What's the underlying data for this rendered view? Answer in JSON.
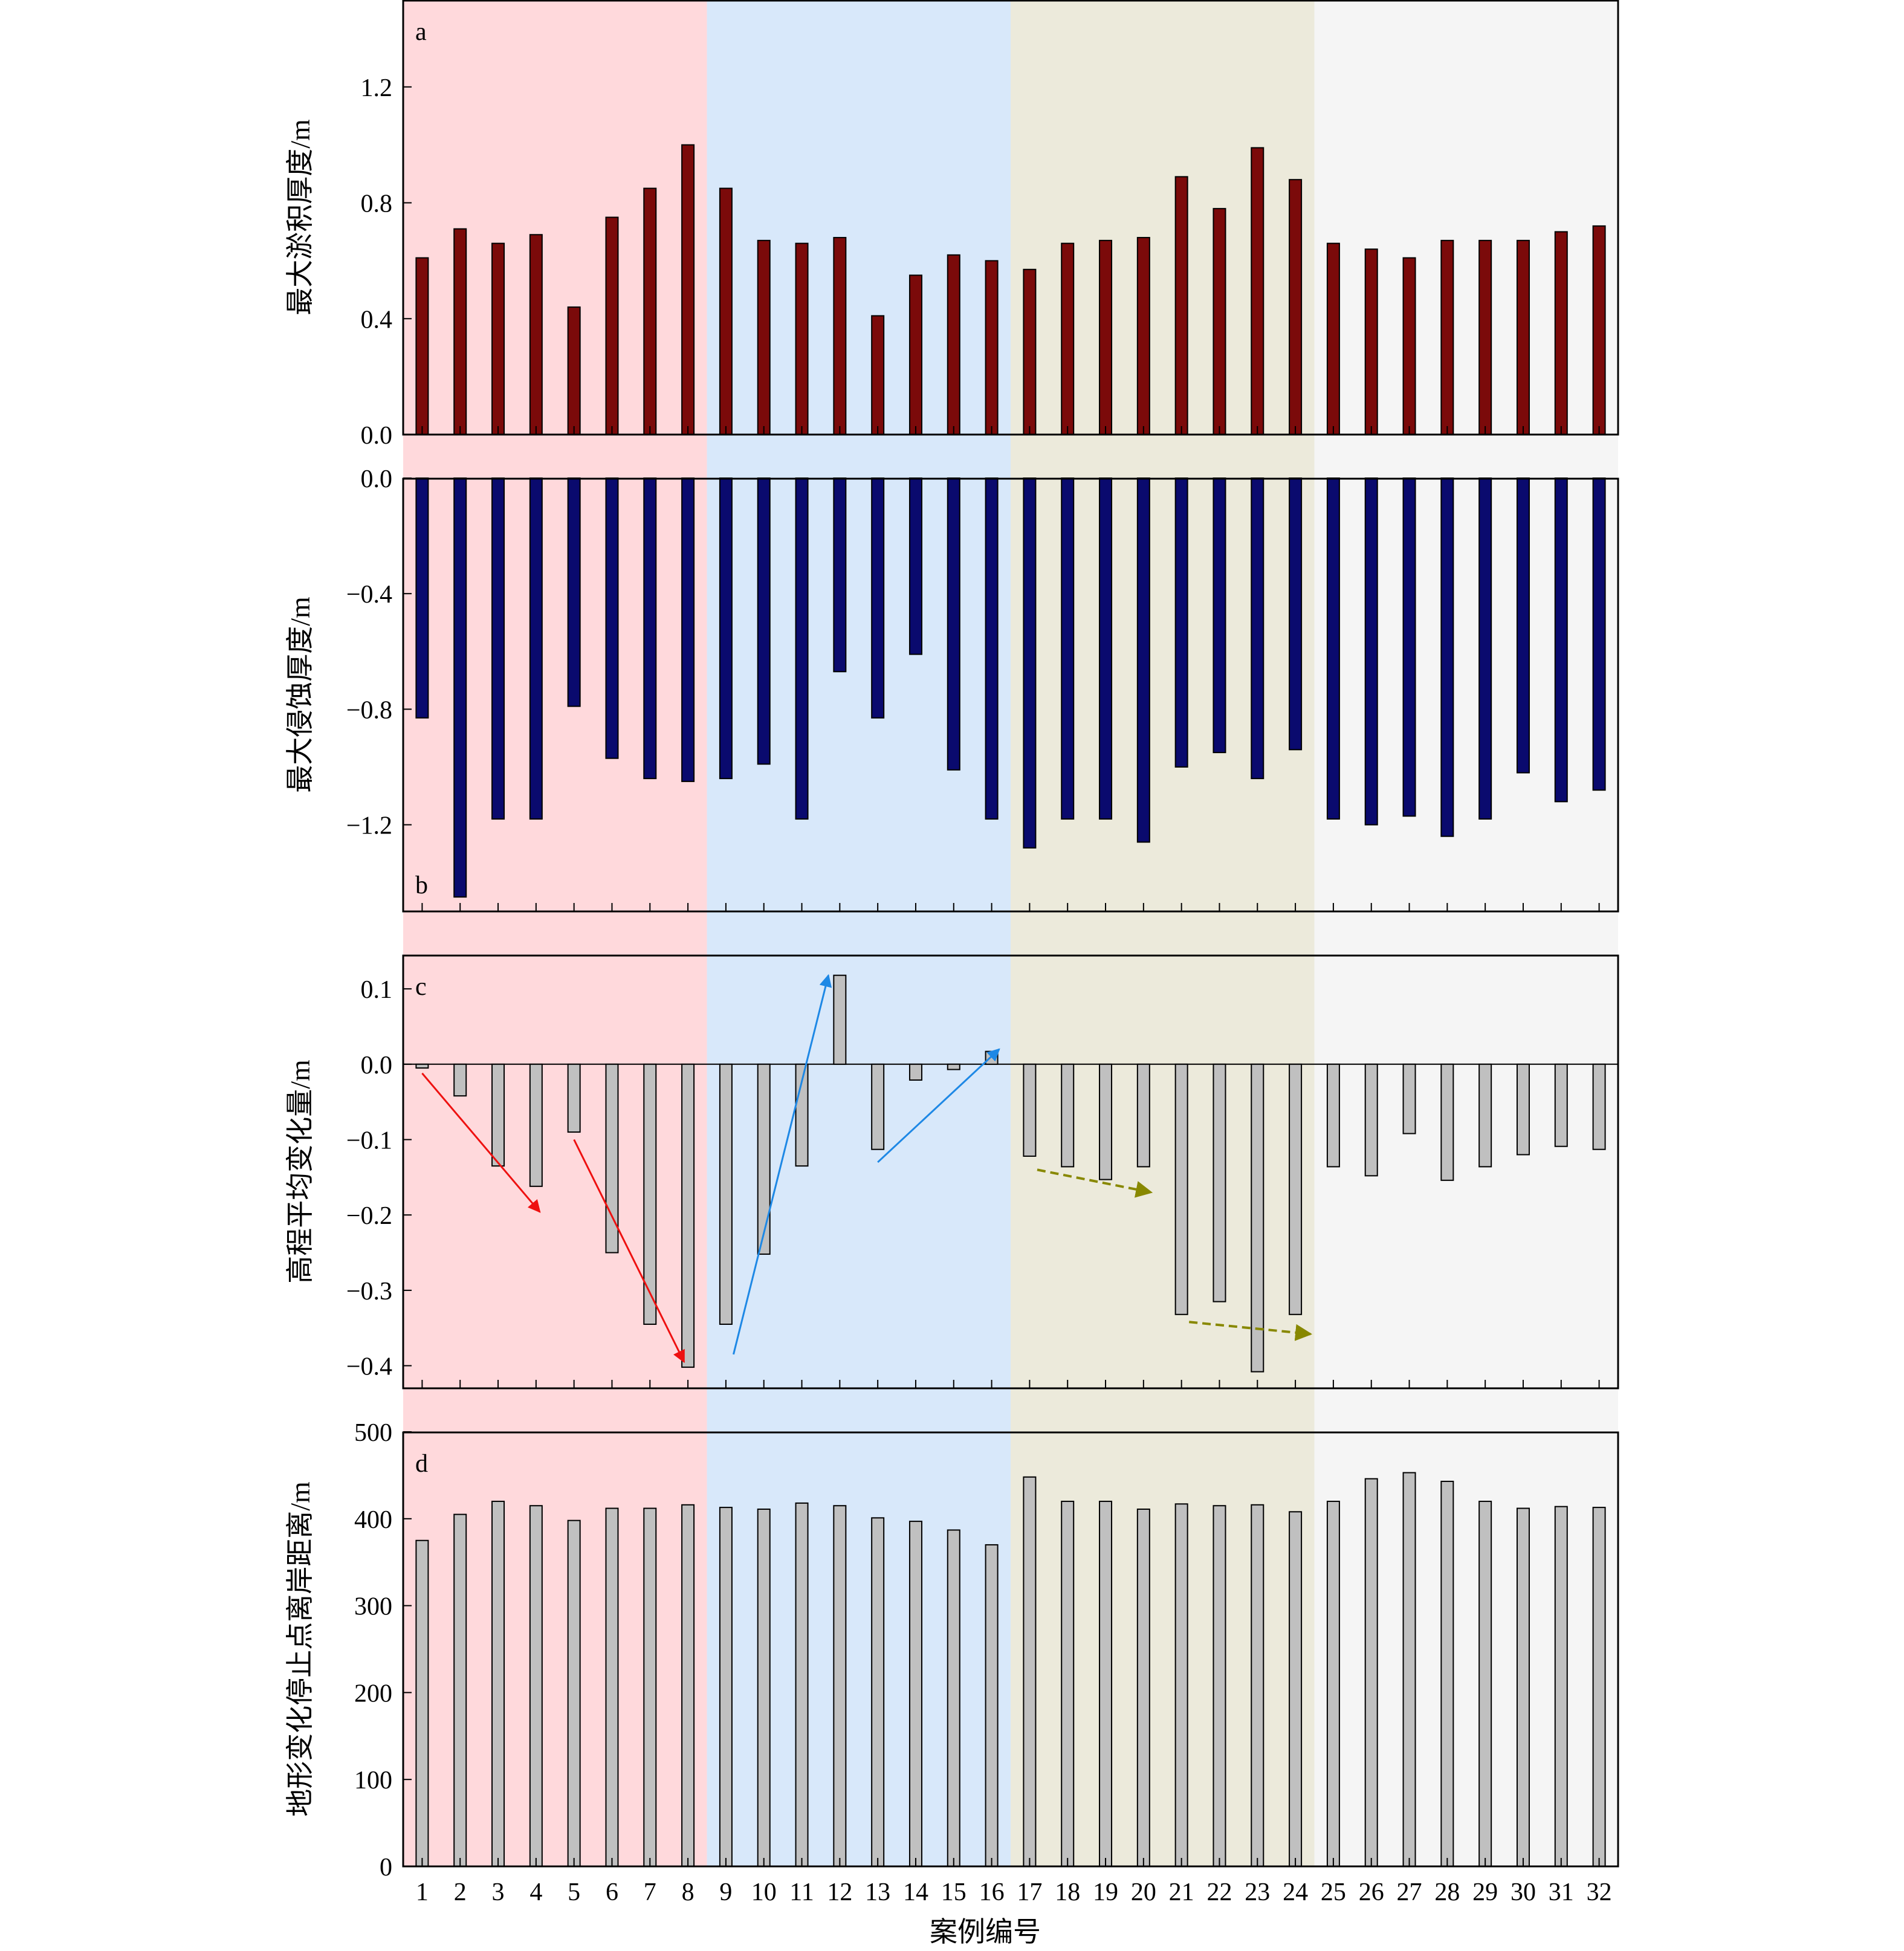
{
  "chart_data": [
    {
      "panel_label": "a",
      "type": "bar",
      "ylabel": "最大淤积厚度/m",
      "ylim": [
        0,
        1.5
      ],
      "yticks": [
        0.0,
        0.4,
        0.8,
        1.2
      ],
      "tick_labels": [
        "0.0",
        "0.4",
        "0.8",
        "1.2"
      ],
      "bar_color": "#7b0a0a",
      "categories": [
        1,
        2,
        3,
        4,
        5,
        6,
        7,
        8,
        9,
        10,
        11,
        12,
        13,
        14,
        15,
        16,
        17,
        18,
        19,
        20,
        21,
        22,
        23,
        24,
        25,
        26,
        27,
        28,
        29,
        30,
        31,
        32
      ],
      "values": [
        0.61,
        0.71,
        0.66,
        0.69,
        0.44,
        0.75,
        0.85,
        1.0,
        0.85,
        0.67,
        0.66,
        0.68,
        0.41,
        0.55,
        0.62,
        0.6,
        0.57,
        0.66,
        0.67,
        0.68,
        0.89,
        0.78,
        0.99,
        0.88,
        0.66,
        0.64,
        0.61,
        0.67,
        0.67,
        0.67,
        0.7,
        0.72
      ]
    },
    {
      "panel_label": "b",
      "type": "bar",
      "ylabel": "最大侵蚀厚度/m",
      "ylim": [
        -1.5,
        0
      ],
      "yticks": [
        0.0,
        -0.4,
        -0.8,
        -1.2
      ],
      "tick_labels": [
        "0.0",
        "−0.4",
        "−0.8",
        "−1.2"
      ],
      "bar_color": "#0a0a6e",
      "categories": [
        1,
        2,
        3,
        4,
        5,
        6,
        7,
        8,
        9,
        10,
        11,
        12,
        13,
        14,
        15,
        16,
        17,
        18,
        19,
        20,
        21,
        22,
        23,
        24,
        25,
        26,
        27,
        28,
        29,
        30,
        31,
        32
      ],
      "values": [
        -0.83,
        -1.45,
        -1.18,
        -1.18,
        -0.79,
        -0.97,
        -1.04,
        -1.05,
        -1.04,
        -0.99,
        -1.18,
        -0.67,
        -0.83,
        -0.61,
        -1.01,
        -1.18,
        -1.28,
        -1.18,
        -1.18,
        -1.26,
        -1.0,
        -0.95,
        -1.04,
        -0.94,
        -1.18,
        -1.2,
        -1.17,
        -1.24,
        -1.18,
        -1.02,
        -1.12,
        -1.08
      ]
    },
    {
      "panel_label": "c",
      "type": "bar",
      "ylabel": "高程平均变化量/m",
      "ylim": [
        -0.43,
        0.145
      ],
      "yticks": [
        0.1,
        0.0,
        -0.1,
        -0.2,
        -0.3,
        -0.4
      ],
      "tick_labels": [
        "0.1",
        "0.0",
        "−0.1",
        "−0.2",
        "−0.3",
        "−0.4"
      ],
      "bar_color": "#c0c0c0",
      "categories": [
        1,
        2,
        3,
        4,
        5,
        6,
        7,
        8,
        9,
        10,
        11,
        12,
        13,
        14,
        15,
        16,
        17,
        18,
        19,
        20,
        21,
        22,
        23,
        24,
        25,
        26,
        27,
        28,
        29,
        30,
        31,
        32
      ],
      "values": [
        -0.005,
        -0.042,
        -0.135,
        -0.162,
        -0.09,
        -0.25,
        -0.345,
        -0.402,
        -0.345,
        -0.252,
        -0.135,
        0.118,
        -0.113,
        -0.021,
        -0.007,
        0.017,
        -0.122,
        -0.136,
        -0.153,
        -0.136,
        -0.332,
        -0.315,
        -0.408,
        -0.332,
        -0.136,
        -0.148,
        -0.092,
        -0.154,
        -0.136,
        -0.12,
        -0.109,
        -0.113
      ],
      "arrows": [
        {
          "color": "#ee1111",
          "style": "solid",
          "from": [
            1.0,
            -0.012
          ],
          "to": [
            4.1,
            -0.196
          ]
        },
        {
          "color": "#ee1111",
          "style": "solid",
          "from": [
            5.0,
            -0.1
          ],
          "to": [
            7.9,
            -0.395
          ]
        },
        {
          "color": "#1e88e5",
          "style": "solid",
          "from": [
            9.2,
            -0.385
          ],
          "to": [
            11.7,
            0.118
          ]
        },
        {
          "color": "#1e88e5",
          "style": "solid",
          "from": [
            13.0,
            -0.13
          ],
          "to": [
            16.2,
            0.02
          ]
        },
        {
          "color": "#888800",
          "style": "dashed",
          "from": [
            17.2,
            -0.14
          ],
          "to": [
            20.2,
            -0.17
          ]
        },
        {
          "color": "#888800",
          "style": "dashed",
          "from": [
            21.2,
            -0.342
          ],
          "to": [
            24.4,
            -0.358
          ]
        }
      ]
    },
    {
      "panel_label": "d",
      "type": "bar",
      "ylabel": "地形变化停止点离岸距离/m",
      "xlabel": "案例编号",
      "ylim": [
        0,
        500
      ],
      "yticks": [
        0,
        100,
        200,
        300,
        400,
        500
      ],
      "tick_labels": [
        "0",
        "100",
        "200",
        "300",
        "400",
        "500"
      ],
      "bar_color": "#c0c0c0",
      "categories": [
        1,
        2,
        3,
        4,
        5,
        6,
        7,
        8,
        9,
        10,
        11,
        12,
        13,
        14,
        15,
        16,
        17,
        18,
        19,
        20,
        21,
        22,
        23,
        24,
        25,
        26,
        27,
        28,
        29,
        30,
        31,
        32
      ],
      "values": [
        375,
        405,
        420,
        415,
        398,
        412,
        412,
        416,
        413,
        411,
        418,
        415,
        401,
        397,
        387,
        370,
        448,
        420,
        420,
        411,
        417,
        415,
        416,
        408,
        420,
        446,
        453,
        443,
        420,
        412,
        414,
        413
      ]
    }
  ],
  "background_groups": [
    {
      "cases": [
        1,
        8
      ],
      "color": "#ffd9dc"
    },
    {
      "cases": [
        9,
        16
      ],
      "color": "#d8e8fa"
    },
    {
      "cases": [
        17,
        24
      ],
      "color": "#eceadb"
    },
    {
      "cases": [
        25,
        32
      ],
      "color": "#f5f5f5"
    }
  ]
}
